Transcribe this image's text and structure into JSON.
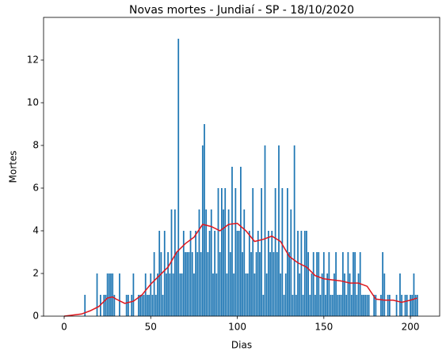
{
  "chart_data": {
    "type": "bar",
    "title": "Novas mortes - Jundiaí - SP - 18/10/2020",
    "xlabel": "Dias",
    "ylabel": "Mortes",
    "color": "#1f77b4",
    "x": [
      0,
      1,
      2,
      3,
      4,
      5,
      6,
      7,
      8,
      9,
      10,
      11,
      12,
      13,
      14,
      15,
      16,
      17,
      18,
      19,
      20,
      21,
      22,
      23,
      24,
      25,
      26,
      27,
      28,
      29,
      30,
      31,
      32,
      33,
      34,
      35,
      36,
      37,
      38,
      39,
      40,
      41,
      42,
      43,
      44,
      45,
      46,
      47,
      48,
      49,
      50,
      51,
      52,
      53,
      54,
      55,
      56,
      57,
      58,
      59,
      60,
      61,
      62,
      63,
      64,
      65,
      66,
      67,
      68,
      69,
      70,
      71,
      72,
      73,
      74,
      75,
      76,
      77,
      78,
      79,
      80,
      81,
      82,
      83,
      84,
      85,
      86,
      87,
      88,
      89,
      90,
      91,
      92,
      93,
      94,
      95,
      96,
      97,
      98,
      99,
      100,
      101,
      102,
      103,
      104,
      105,
      106,
      107,
      108,
      109,
      110,
      111,
      112,
      113,
      114,
      115,
      116,
      117,
      118,
      119,
      120,
      121,
      122,
      123,
      124,
      125,
      126,
      127,
      128,
      129,
      130,
      131,
      132,
      133,
      134,
      135,
      136,
      137,
      138,
      139,
      140,
      141,
      142,
      143,
      144,
      145,
      146,
      147,
      148,
      149,
      150,
      151,
      152,
      153,
      154,
      155,
      156,
      157,
      158,
      159,
      160,
      161,
      162,
      163,
      164,
      165,
      166,
      167,
      168,
      169,
      170,
      171,
      172,
      173,
      174,
      175,
      176,
      177,
      178,
      179,
      180,
      181,
      182,
      183,
      184,
      185,
      186,
      187,
      188,
      189,
      190,
      191,
      192,
      193,
      194,
      195,
      196,
      197,
      198,
      199,
      200,
      201,
      202,
      203,
      204
    ],
    "values": [
      0,
      0,
      0,
      0,
      0,
      0,
      0,
      0,
      0,
      0,
      0,
      0,
      1,
      0,
      0,
      0,
      0,
      0,
      0,
      2,
      0,
      1,
      0,
      1,
      1,
      2,
      2,
      2,
      2,
      1,
      0,
      0,
      2,
      0,
      0,
      0,
      1,
      1,
      0,
      1,
      2,
      0,
      0,
      1,
      1,
      1,
      1,
      2,
      1,
      1,
      2,
      1,
      3,
      1,
      2,
      4,
      3,
      1,
      4,
      2,
      3,
      2,
      5,
      2,
      5,
      3,
      13,
      2,
      2,
      4,
      3,
      3,
      3,
      4,
      3,
      2,
      4,
      3,
      5,
      3,
      8,
      9,
      5,
      3,
      4,
      5,
      2,
      4,
      2,
      6,
      3,
      6,
      5,
      6,
      2,
      5,
      3,
      7,
      2,
      6,
      4,
      4,
      7,
      3,
      5,
      2,
      2,
      4,
      3,
      6,
      2,
      3,
      4,
      3,
      6,
      1,
      8,
      2,
      4,
      3,
      4,
      3,
      6,
      3,
      8,
      2,
      6,
      1,
      2,
      6,
      3,
      5,
      1,
      8,
      1,
      4,
      2,
      4,
      1,
      4,
      4,
      3,
      1,
      2,
      3,
      1,
      3,
      3,
      1,
      2,
      3,
      1,
      2,
      3,
      1,
      1,
      2,
      3,
      1,
      1,
      1,
      3,
      2,
      1,
      3,
      2,
      1,
      3,
      3,
      1,
      2,
      3,
      1,
      1,
      1,
      1,
      1,
      0,
      0,
      1,
      1,
      0,
      0,
      1,
      3,
      2,
      0,
      1,
      1,
      0,
      0,
      0,
      1,
      0,
      2,
      1,
      0,
      1,
      1,
      0,
      1,
      1,
      2,
      1,
      1
    ],
    "line": {
      "color": "#e0161d",
      "x": [
        0,
        5,
        10,
        15,
        20,
        25,
        28,
        30,
        35,
        40,
        45,
        50,
        55,
        60,
        65,
        70,
        75,
        80,
        85,
        90,
        95,
        100,
        105,
        110,
        115,
        120,
        125,
        130,
        135,
        140,
        145,
        150,
        155,
        160,
        165,
        170,
        175,
        180,
        185,
        190,
        195,
        200,
        204
      ],
      "values": [
        0,
        0.05,
        0.1,
        0.25,
        0.45,
        0.85,
        0.9,
        0.8,
        0.6,
        0.7,
        1.0,
        1.5,
        1.9,
        2.3,
        3.0,
        3.4,
        3.7,
        4.3,
        4.2,
        4.0,
        4.3,
        4.35,
        4.0,
        3.5,
        3.6,
        3.75,
        3.5,
        2.8,
        2.5,
        2.3,
        1.9,
        1.75,
        1.7,
        1.65,
        1.55,
        1.55,
        1.4,
        0.8,
        0.75,
        0.75,
        0.65,
        0.75,
        0.85
      ]
    },
    "xlim": [
      -11.9,
      216.9
    ],
    "ylim": [
      0,
      14
    ],
    "xticks": [
      0,
      50,
      100,
      150,
      200
    ],
    "yticks": [
      0,
      2,
      4,
      6,
      8,
      10,
      12
    ]
  }
}
